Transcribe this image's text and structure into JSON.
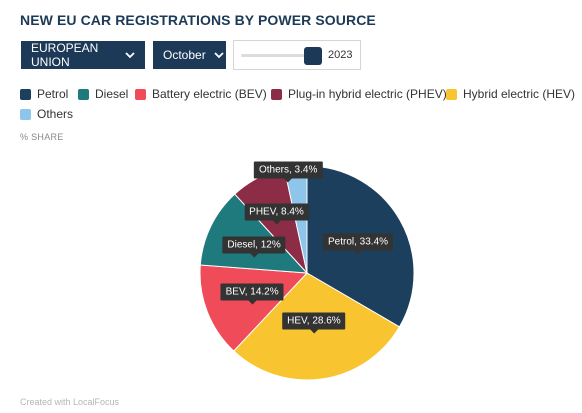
{
  "title": "NEW EU CAR REGISTRATIONS BY POWER SOURCE",
  "controls": {
    "region": "EUROPEAN UNION",
    "month": "October",
    "year": "2023"
  },
  "unit_label": "% SHARE",
  "credit": "Created with LocalFocus",
  "chart_data": {
    "type": "pie",
    "slices": [
      {
        "name": "Petrol",
        "value": 33.4,
        "label": "Petrol, 33.4%",
        "color": "#1c3f5e"
      },
      {
        "name": "Hybrid electric (HEV)",
        "value": 28.6,
        "label": "HEV, 28.6%",
        "color": "#f8c530"
      },
      {
        "name": "Battery electric (BEV)",
        "value": 14.2,
        "label": "BEV, 14.2%",
        "color": "#ef4b58"
      },
      {
        "name": "Diesel",
        "value": 12,
        "label": "Diesel, 12%",
        "color": "#1e7a7c"
      },
      {
        "name": "Plug-in hybrid electric (PHEV)",
        "value": 8.4,
        "label": "PHEV, 8.4%",
        "color": "#8c2c47"
      },
      {
        "name": "Others",
        "value": 3.4,
        "label": "Others, 3.4%",
        "color": "#8ec5ea"
      }
    ],
    "legend": [
      {
        "name": "Petrol",
        "color": "#1c3f5e"
      },
      {
        "name": "Diesel",
        "color": "#1e7a7c"
      },
      {
        "name": "Battery electric (BEV)",
        "color": "#ef4b58"
      },
      {
        "name": "Plug-in hybrid electric (PHEV)",
        "color": "#8c2c47"
      },
      {
        "name": "Hybrid electric (HEV)",
        "color": "#f8c530"
      },
      {
        "name": "Others",
        "color": "#8ec5ea"
      }
    ]
  }
}
